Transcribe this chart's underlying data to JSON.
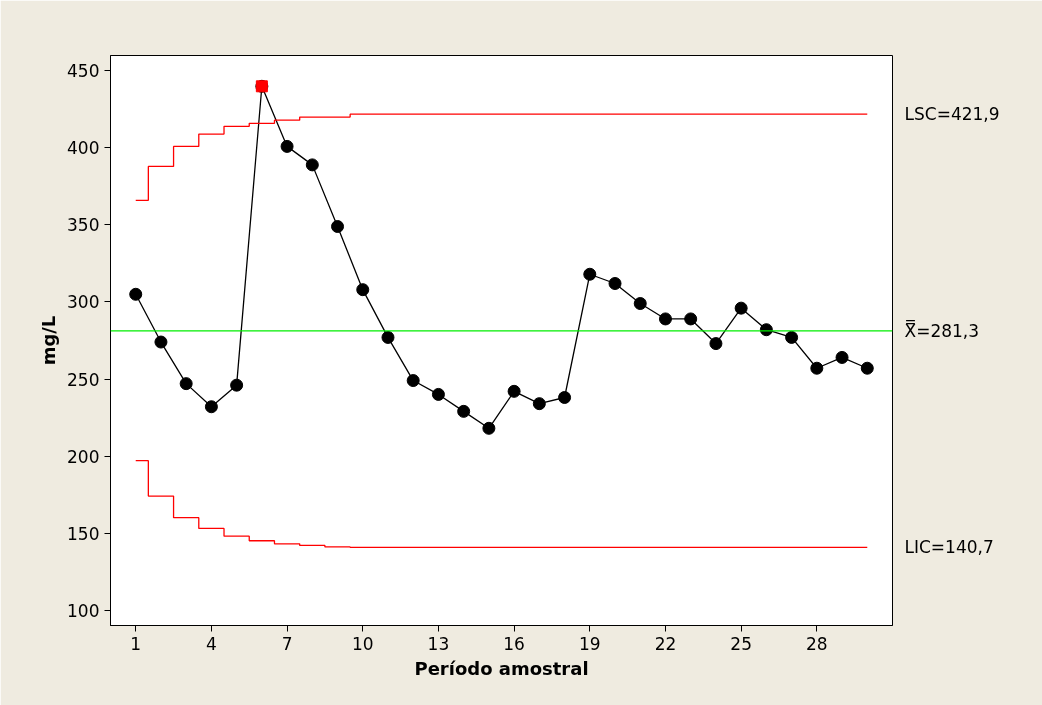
{
  "chart_data": {
    "type": "line",
    "xlabel": "Período amostral",
    "ylabel": "mg/L",
    "x": [
      1,
      2,
      3,
      4,
      5,
      6,
      7,
      8,
      9,
      10,
      11,
      12,
      13,
      14,
      15,
      16,
      17,
      18,
      19,
      20,
      21,
      22,
      23,
      24,
      25,
      26,
      27,
      28,
      29,
      30
    ],
    "series": [
      {
        "color": "#000000",
        "marker": "circle",
        "values": [
          305,
          274,
          247,
          232,
          246,
          440,
          401,
          389,
          349,
          308,
          277,
          249,
          240,
          229,
          218,
          242,
          234,
          238,
          318,
          312,
          299,
          289,
          289,
          273,
          296,
          282,
          277,
          257,
          264,
          257
        ]
      },
      {
        "type": "scatter",
        "color": "#ff0000",
        "marker": "square",
        "x": [
          6
        ],
        "values": [
          440
        ]
      },
      {
        "type": "step",
        "name": "LSC=421,9",
        "color": "#ff0000",
        "marker": "none",
        "values": [
          366,
          388,
          401,
          409,
          414,
          416,
          418,
          420,
          420,
          421.9,
          421.9,
          421.9,
          421.9,
          421.9,
          421.9,
          421.9,
          421.9,
          421.9,
          421.9,
          421.9,
          421.9,
          421.9,
          421.9,
          421.9,
          421.9,
          421.9,
          421.9,
          421.9,
          421.9,
          421.9
        ]
      },
      {
        "type": "step",
        "name": "LIC=140,7",
        "color": "#ff0000",
        "marker": "none",
        "values": [
          197,
          174,
          160,
          153,
          148,
          145,
          143,
          142,
          141,
          140.7,
          140.7,
          140.7,
          140.7,
          140.7,
          140.7,
          140.7,
          140.7,
          140.7,
          140.7,
          140.7,
          140.7,
          140.7,
          140.7,
          140.7,
          140.7,
          140.7,
          140.7,
          140.7,
          140.7,
          140.7
        ]
      }
    ],
    "ref_lines": [
      {
        "axis": "y",
        "value": 281.3,
        "label": "X̿=281,3",
        "color": "#00ee00"
      }
    ],
    "xlim": [
      0,
      31
    ],
    "ylim": [
      90,
      460
    ],
    "xticks": [
      1,
      4,
      7,
      10,
      13,
      16,
      19,
      22,
      25,
      28
    ],
    "yticks": [
      100,
      150,
      200,
      250,
      300,
      350,
      400,
      450
    ],
    "grid": false
  }
}
